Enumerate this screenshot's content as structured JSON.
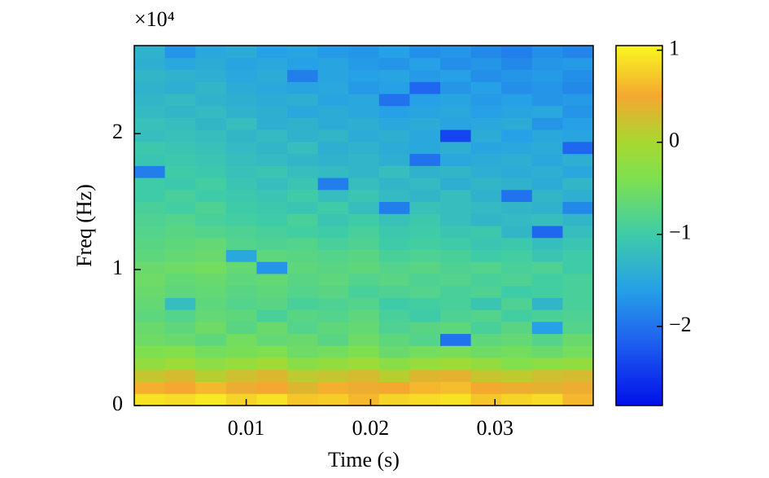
{
  "chart_data": {
    "type": "heatmap",
    "xlabel": "Time (s)",
    "ylabel": "Freq (Hz)",
    "y_exponent": "×10⁴",
    "x": [
      0.00223,
      0.00469,
      0.00715,
      0.00961,
      0.01207,
      0.01453,
      0.01699,
      0.01945,
      0.02191,
      0.02437,
      0.02683,
      0.02929,
      0.03175,
      0.03421,
      0.03667
    ],
    "y": [
      441,
      1324,
      2206,
      3088,
      3971,
      4853,
      5735,
      6618,
      7500,
      8382,
      9265,
      10147,
      11029,
      11912,
      12794,
      13676,
      14559,
      15441,
      16323,
      17206,
      18088,
      18970,
      19853,
      20735,
      21617,
      22500,
      23382,
      24264,
      25147,
      26029
    ],
    "values": [
      [
        0.9,
        0.85,
        0.95,
        0.8,
        0.9,
        0.7,
        0.75,
        0.6,
        0.8,
        0.85,
        0.9,
        0.7,
        0.8,
        0.85,
        0.6
      ],
      [
        0.55,
        0.5,
        0.6,
        0.45,
        0.5,
        0.35,
        0.55,
        0.45,
        0.5,
        0.6,
        0.65,
        0.5,
        0.45,
        0.4,
        0.45
      ],
      [
        0.2,
        0.3,
        0.1,
        0.25,
        0.35,
        0.15,
        0.2,
        0.3,
        0.1,
        0.35,
        0.4,
        0.2,
        0.15,
        0.25,
        0.3
      ],
      [
        -0.2,
        -0.1,
        -0.25,
        -0.15,
        -0.05,
        -0.3,
        -0.2,
        -0.1,
        -0.3,
        -0.15,
        -0.1,
        -0.2,
        -0.35,
        -0.25,
        -0.2
      ],
      [
        -0.4,
        -0.35,
        -0.5,
        -0.45,
        -0.4,
        -0.55,
        -0.5,
        -0.4,
        -0.6,
        -0.5,
        -0.45,
        -0.55,
        -0.5,
        -0.6,
        -0.5
      ],
      [
        -0.55,
        -0.6,
        -0.7,
        -0.5,
        -0.65,
        -0.6,
        -0.75,
        -0.55,
        -0.7,
        -0.8,
        -2.0,
        -0.7,
        -0.65,
        -0.8,
        -0.6
      ],
      [
        -0.6,
        -0.7,
        -0.55,
        -0.75,
        -0.6,
        -0.8,
        -0.7,
        -0.65,
        -0.85,
        -0.75,
        -0.7,
        -0.9,
        -0.75,
        -1.6,
        -0.8
      ],
      [
        -0.7,
        -0.8,
        -0.65,
        -0.7,
        -0.9,
        -0.75,
        -0.8,
        -0.7,
        -0.9,
        -1.0,
        -0.85,
        -0.8,
        -0.95,
        -0.9,
        -0.85
      ],
      [
        -0.65,
        -1.2,
        -0.7,
        -0.8,
        -0.75,
        -0.9,
        -0.85,
        -0.8,
        -1.0,
        -0.95,
        -0.9,
        -1.1,
        -0.85,
        -1.3,
        -0.9
      ],
      [
        -0.6,
        -0.7,
        -0.65,
        -0.75,
        -0.7,
        -0.8,
        -0.75,
        -0.9,
        -0.85,
        -0.8,
        -0.9,
        -0.85,
        -1.0,
        -0.95,
        -0.9
      ],
      [
        -0.55,
        -0.65,
        -0.6,
        -0.7,
        -0.65,
        -0.75,
        -0.7,
        -0.8,
        -0.75,
        -0.85,
        -0.8,
        -0.9,
        -0.85,
        -0.95,
        -0.9
      ],
      [
        -0.6,
        -0.55,
        -0.5,
        -0.65,
        -1.7,
        -0.7,
        -0.75,
        -0.7,
        -0.8,
        -0.75,
        -0.85,
        -0.8,
        -0.9,
        -0.85,
        -1.0
      ],
      [
        -0.7,
        -0.65,
        -0.6,
        -1.5,
        -0.7,
        -0.75,
        -0.8,
        -0.75,
        -0.9,
        -0.85,
        -0.9,
        -1.0,
        -0.95,
        -1.1,
        -1.0
      ],
      [
        -0.75,
        -0.7,
        -0.65,
        -0.8,
        -0.85,
        -0.8,
        -0.9,
        -0.85,
        -1.0,
        -0.95,
        -1.0,
        -1.1,
        -1.05,
        -1.2,
        -1.1
      ],
      [
        -0.8,
        -0.75,
        -0.8,
        -0.85,
        -0.9,
        -0.95,
        -1.0,
        -0.9,
        -1.05,
        -1.0,
        -1.1,
        -1.05,
        -1.3,
        -2.1,
        -1.2
      ],
      [
        -0.85,
        -0.8,
        -0.9,
        -0.95,
        -1.0,
        -0.9,
        -1.1,
        -1.0,
        -1.15,
        -1.05,
        -1.2,
        -1.3,
        -1.25,
        -1.2,
        -1.3
      ],
      [
        -0.9,
        -0.95,
        -0.85,
        -1.0,
        -1.05,
        -1.1,
        -1.0,
        -1.2,
        -1.9,
        -1.15,
        -1.2,
        -1.25,
        -1.3,
        -1.35,
        -1.8
      ],
      [
        -1.0,
        -0.9,
        -1.0,
        -1.05,
        -1.1,
        -1.0,
        -1.2,
        -1.1,
        -1.25,
        -1.3,
        -1.2,
        -1.35,
        -2.0,
        -1.3,
        -1.4
      ],
      [
        -1.0,
        -1.05,
        -0.95,
        -1.1,
        -1.2,
        -1.1,
        -1.9,
        -1.2,
        -1.3,
        -1.25,
        -1.4,
        -1.3,
        -1.35,
        -1.45,
        -1.3
      ],
      [
        -1.9,
        -1.0,
        -1.05,
        -1.15,
        -1.1,
        -1.2,
        -1.25,
        -1.3,
        -1.2,
        -1.35,
        -1.3,
        -1.4,
        -1.45,
        -1.4,
        -1.5
      ],
      [
        -1.1,
        -1.05,
        -1.1,
        -1.2,
        -1.25,
        -1.3,
        -1.35,
        -1.3,
        -1.4,
        -2.0,
        -1.5,
        -1.45,
        -1.4,
        -1.5,
        -1.4
      ],
      [
        -1.05,
        -1.1,
        -1.15,
        -1.25,
        -1.3,
        -1.2,
        -1.4,
        -1.35,
        -1.45,
        -1.5,
        -1.4,
        -1.55,
        -1.5,
        -1.45,
        -2.1
      ],
      [
        -1.2,
        -1.15,
        -1.2,
        -1.3,
        -1.25,
        -1.35,
        -1.3,
        -1.45,
        -1.4,
        -1.5,
        -2.4,
        -1.45,
        -1.6,
        -1.5,
        -1.55
      ],
      [
        -1.15,
        -1.2,
        -1.3,
        -1.2,
        -1.4,
        -1.35,
        -1.45,
        -1.4,
        -1.5,
        -1.45,
        -1.55,
        -1.5,
        -1.45,
        -1.7,
        -1.6
      ],
      [
        -1.25,
        -1.3,
        -1.25,
        -1.35,
        -1.4,
        -1.5,
        -1.45,
        -1.5,
        -1.6,
        -1.55,
        -1.5,
        -1.6,
        -1.55,
        -1.5,
        -1.7
      ],
      [
        -1.3,
        -1.25,
        -1.35,
        -1.4,
        -1.45,
        -1.4,
        -1.55,
        -1.5,
        -2.0,
        -1.6,
        -1.55,
        -1.65,
        -1.6,
        -1.7,
        -1.65
      ],
      [
        -1.35,
        -1.4,
        -1.3,
        -1.45,
        -1.5,
        -1.55,
        -1.5,
        -1.65,
        -1.6,
        -2.1,
        -1.7,
        -1.6,
        -1.75,
        -1.7,
        -1.8
      ],
      [
        -1.3,
        -1.35,
        -1.4,
        -1.5,
        -1.45,
        -1.9,
        -1.55,
        -1.6,
        -1.55,
        -1.65,
        -1.6,
        -1.75,
        -1.7,
        -1.65,
        -1.75
      ],
      [
        -1.4,
        -1.5,
        -1.45,
        -1.55,
        -1.5,
        -1.6,
        -1.55,
        -1.65,
        -1.7,
        -1.6,
        -1.75,
        -1.7,
        -1.8,
        -1.7,
        -1.65
      ],
      [
        -1.35,
        -1.7,
        -1.5,
        -1.45,
        -1.6,
        -1.55,
        -1.65,
        -1.7,
        -1.6,
        -1.75,
        -1.7,
        -1.8,
        -1.9,
        -1.75,
        -1.85
      ]
    ],
    "xlim": [
      0.001,
      0.0379
    ],
    "xticks": [
      0.01,
      0.02,
      0.03
    ],
    "ylim": [
      0,
      26470
    ],
    "yticks": [
      0,
      {
        "value": 10000,
        "label": "1"
      },
      {
        "value": 20000,
        "label": "2"
      }
    ],
    "clim": [
      -2.86,
      1.05
    ],
    "cticks": [
      {
        "value": -2,
        "label": "−2"
      },
      {
        "value": -1,
        "label": "−1"
      },
      0,
      1
    ],
    "colormap": [
      [
        -2.86,
        "#0010e8"
      ],
      [
        -2.2,
        "#1e5cf0"
      ],
      [
        -1.6,
        "#26a0e6"
      ],
      [
        -1.0,
        "#3ecca8"
      ],
      [
        -0.4,
        "#7ee050"
      ],
      [
        0,
        "#a8d830"
      ],
      [
        0.5,
        "#f4a830"
      ],
      [
        1.05,
        "#f8f820"
      ]
    ]
  }
}
